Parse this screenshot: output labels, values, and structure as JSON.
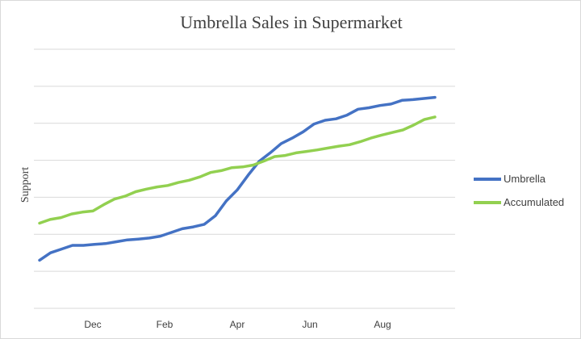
{
  "chart_data": {
    "type": "line",
    "title": "Umbrella Sales in Supermarket",
    "xlabel": "",
    "ylabel": "Support",
    "x_tick_labels": [
      "Dec",
      "Feb",
      "Apr",
      "Jun",
      "Aug"
    ],
    "grid": true,
    "legend_position": "right",
    "ylim": [
      0,
      7
    ],
    "series": [
      {
        "name": "Umbrella",
        "color": "#4472c4",
        "values": [
          1.3,
          1.5,
          1.6,
          1.7,
          1.7,
          1.73,
          1.75,
          1.8,
          1.85,
          1.87,
          1.9,
          1.95,
          2.05,
          2.15,
          2.2,
          2.27,
          2.5,
          2.9,
          3.2,
          3.6,
          3.97,
          4.2,
          4.45,
          4.6,
          4.77,
          4.98,
          5.08,
          5.12,
          5.22,
          5.38,
          5.42,
          5.48,
          5.52,
          5.62,
          5.64,
          5.67,
          5.7
        ]
      },
      {
        "name": "Accumulated",
        "color": "#92d050",
        "values": [
          2.3,
          2.4,
          2.45,
          2.55,
          2.6,
          2.63,
          2.8,
          2.95,
          3.03,
          3.15,
          3.22,
          3.28,
          3.32,
          3.4,
          3.46,
          3.55,
          3.67,
          3.72,
          3.8,
          3.82,
          3.87,
          3.98,
          4.1,
          4.13,
          4.2,
          4.24,
          4.28,
          4.33,
          4.38,
          4.42,
          4.5,
          4.6,
          4.68,
          4.75,
          4.82,
          4.95,
          5.1,
          5.17
        ]
      }
    ]
  }
}
